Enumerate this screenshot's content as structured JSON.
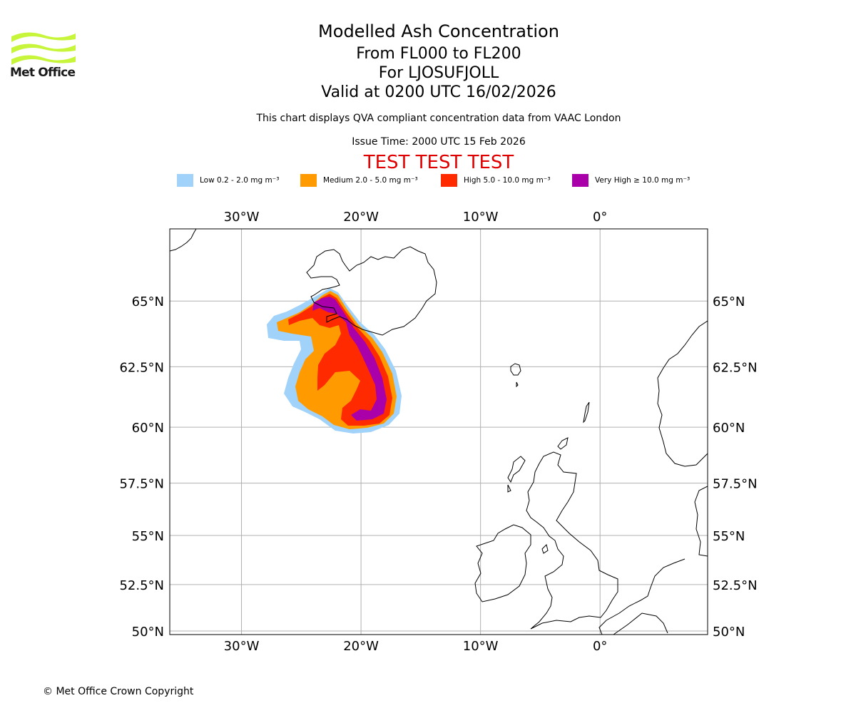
{
  "brand": {
    "logo_text": "Met Office",
    "logo_color": "#c6f53a"
  },
  "header": {
    "title": "Modelled Ash Concentration",
    "levels": "From FL000 to FL200",
    "volcano": "For LJOSUFJOLL",
    "valid": "Valid at 0200 UTC 16/02/2026",
    "description": "This chart displays QVA compliant concentration data from VAAC London",
    "issue": "Issue Time: 2000 UTC 15 Feb 2026",
    "test_banner": "TEST TEST TEST",
    "test_color": "#e00000"
  },
  "legend": [
    {
      "label": "Low 0.2 - 2.0 mg m⁻³",
      "color": "#a0d2fa"
    },
    {
      "label": "Medium 2.0 - 5.0 mg m⁻³",
      "color": "#ff9a00"
    },
    {
      "label": "High 5.0 - 10.0 mg m⁻³",
      "color": "#ff2a00"
    },
    {
      "label": "Very High ≥ 10.0 mg m⁻³",
      "color": "#aa00aa"
    }
  ],
  "map": {
    "lon_range": [
      -36,
      9
    ],
    "lat_range": [
      49.8,
      67.5
    ],
    "lon_ticks": [
      {
        "value": -30,
        "label": "30°W"
      },
      {
        "value": -20,
        "label": "20°W"
      },
      {
        "value": -10,
        "label": "10°W"
      },
      {
        "value": 0,
        "label": "0°"
      }
    ],
    "lat_ticks": [
      {
        "value": 65,
        "label": "65°N"
      },
      {
        "value": 62.5,
        "label": "62.5°N"
      },
      {
        "value": 60,
        "label": "60°N"
      },
      {
        "value": 57.5,
        "label": "57.5°N"
      },
      {
        "value": 55,
        "label": "55°N"
      },
      {
        "value": 52.5,
        "label": "52.5°N"
      },
      {
        "value": 50,
        "label": "50°N"
      }
    ],
    "grid": true
  },
  "footer": {
    "copyright": "© Met Office Crown Copyright"
  }
}
